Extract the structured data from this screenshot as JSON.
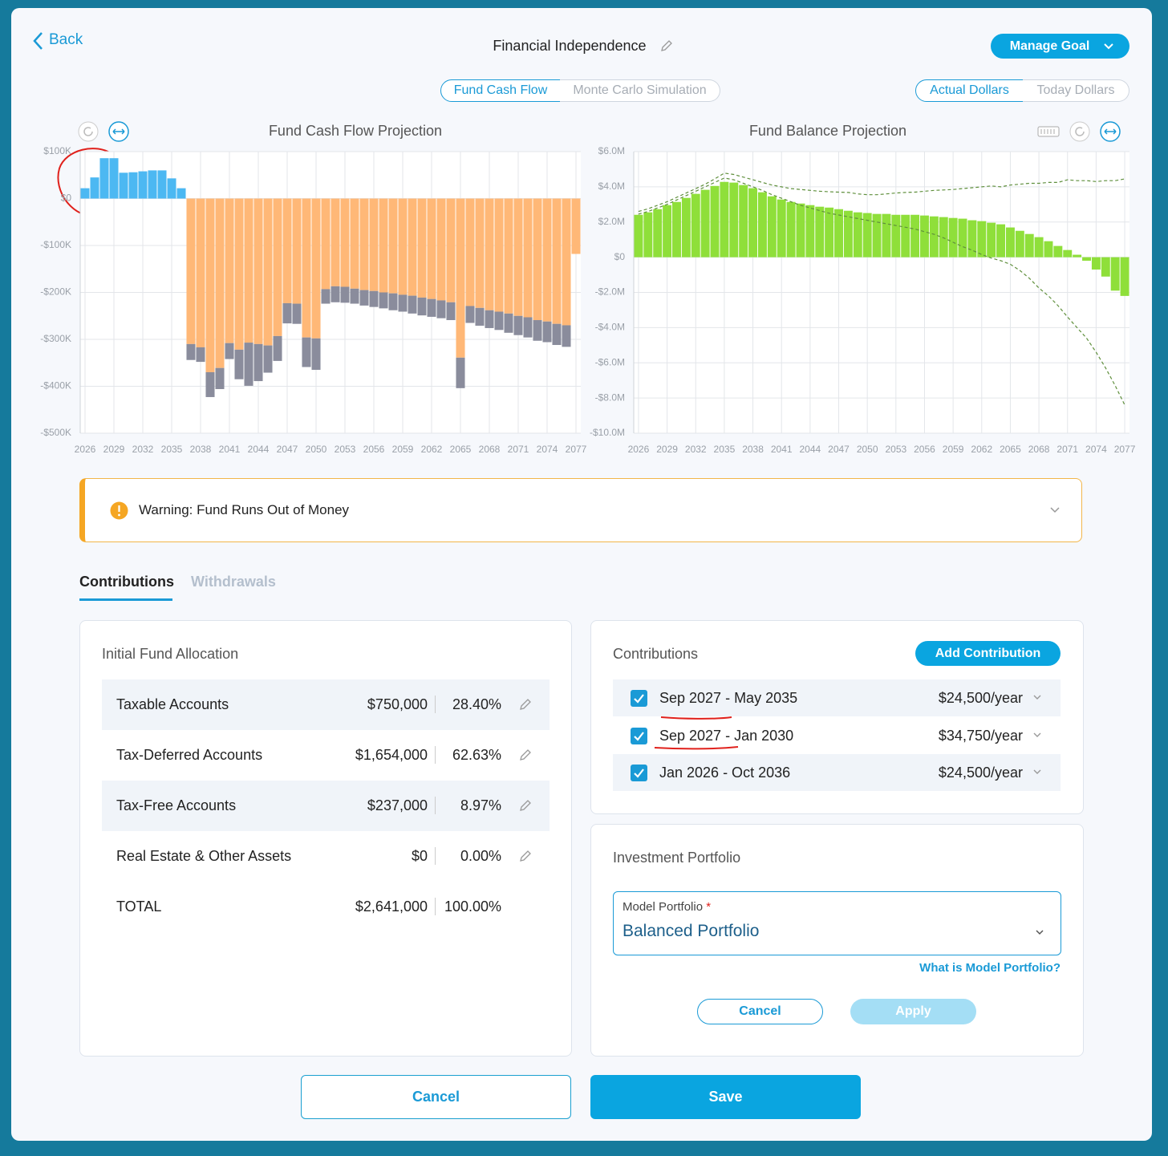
{
  "header": {
    "back": "Back",
    "title": "Financial Independence",
    "manage_goal": "Manage Goal"
  },
  "view_toggle": [
    "Fund Cash Flow",
    "Monte Carlo Simulation"
  ],
  "dollar_toggle": [
    "Actual Dollars",
    "Today Dollars"
  ],
  "chart_data": [
    {
      "type": "bar",
      "title": "Fund Cash Flow Projection",
      "x": [
        2026,
        2027,
        2028,
        2029,
        2030,
        2031,
        2032,
        2033,
        2034,
        2035,
        2036,
        2037,
        2038,
        2039,
        2040,
        2041,
        2042,
        2043,
        2044,
        2045,
        2046,
        2047,
        2048,
        2049,
        2050,
        2051,
        2052,
        2053,
        2054,
        2055,
        2056,
        2057,
        2058,
        2059,
        2060,
        2061,
        2062,
        2063,
        2064,
        2065,
        2066,
        2067,
        2068,
        2069,
        2070,
        2071,
        2072,
        2073,
        2074,
        2075,
        2076,
        2077
      ],
      "xlim": [
        2025.5,
        2077.5
      ],
      "xticks": [
        2026,
        2029,
        2032,
        2035,
        2038,
        2041,
        2044,
        2047,
        2050,
        2053,
        2056,
        2059,
        2062,
        2065,
        2068,
        2071,
        2074,
        2077
      ],
      "ylim": [
        -500000,
        100000
      ],
      "yticks": [
        {
          "value": -500000,
          "label": "-$500K"
        },
        {
          "value": -400000,
          "label": "-$400K"
        },
        {
          "value": -300000,
          "label": "-$300K"
        },
        {
          "value": -200000,
          "label": "-$200K"
        },
        {
          "value": -100000,
          "label": "-$100K"
        },
        {
          "value": 0,
          "label": "$0"
        },
        {
          "value": 100000,
          "label": "$100K"
        }
      ],
      "grid": true,
      "series": [
        {
          "color": "#4cb8f2",
          "values": [
            22000,
            45000,
            86000,
            86000,
            55000,
            56000,
            58000,
            60000,
            60000,
            43000,
            22000,
            null,
            null,
            null,
            null,
            null,
            null,
            null,
            null,
            null,
            null,
            null,
            null,
            null,
            null,
            null,
            null,
            null,
            null,
            null,
            null,
            null,
            null,
            null,
            null,
            null,
            null,
            null,
            null,
            null,
            null,
            null,
            null,
            null,
            null,
            null,
            null,
            null,
            null,
            null,
            null,
            null
          ]
        },
        {
          "color": "#ffb877",
          "values": [
            null,
            null,
            null,
            null,
            null,
            null,
            null,
            null,
            null,
            null,
            null,
            -310000,
            -317000,
            -370000,
            -361000,
            -308000,
            -322000,
            -307000,
            -310000,
            -313000,
            -293000,
            -223000,
            -224000,
            -296000,
            -298000,
            -193000,
            -187000,
            -188000,
            -192000,
            -195000,
            -197000,
            -200000,
            -202000,
            -205000,
            -207000,
            -211000,
            -214000,
            -217000,
            -221000,
            -339000,
            -229000,
            -233000,
            -238000,
            -241000,
            -245000,
            -250000,
            -253000,
            -259000,
            -262000,
            -267000,
            -270000,
            -118000
          ]
        },
        {
          "color": "#8a8c9c",
          "values": [
            null,
            null,
            null,
            null,
            null,
            null,
            null,
            null,
            null,
            null,
            null,
            -34000,
            -31000,
            -53000,
            -45000,
            -34000,
            -63000,
            -92000,
            -79000,
            -58000,
            -53000,
            -43000,
            -43000,
            -63000,
            -67000,
            -31000,
            -34000,
            -34000,
            -32000,
            -33000,
            -34000,
            -34000,
            -36000,
            -36000,
            -38000,
            -38000,
            -38000,
            -38000,
            -38000,
            -65000,
            -36000,
            -38000,
            -38000,
            -39000,
            -41000,
            -41000,
            -43000,
            -44000,
            -44000,
            -45000,
            -46000,
            null
          ]
        }
      ]
    },
    {
      "type": "bar",
      "title": "Fund Balance Projection",
      "x": [
        2026,
        2027,
        2028,
        2029,
        2030,
        2031,
        2032,
        2033,
        2034,
        2035,
        2036,
        2037,
        2038,
        2039,
        2040,
        2041,
        2042,
        2043,
        2044,
        2045,
        2046,
        2047,
        2048,
        2049,
        2050,
        2051,
        2052,
        2053,
        2054,
        2055,
        2056,
        2057,
        2058,
        2059,
        2060,
        2061,
        2062,
        2063,
        2064,
        2065,
        2066,
        2067,
        2068,
        2069,
        2070,
        2071,
        2072,
        2073,
        2074,
        2075,
        2076,
        2077
      ],
      "xlim": [
        2025.5,
        2077.5
      ],
      "xticks": [
        2026,
        2029,
        2032,
        2035,
        2038,
        2041,
        2044,
        2047,
        2050,
        2053,
        2056,
        2059,
        2062,
        2065,
        2068,
        2071,
        2074,
        2077
      ],
      "ylim": [
        -10000000,
        6000000
      ],
      "yticks": [
        {
          "value": -10000000,
          "label": "-$10.0M"
        },
        {
          "value": -8000000,
          "label": "-$8.0M"
        },
        {
          "value": -6000000,
          "label": "-$6.0M"
        },
        {
          "value": -4000000,
          "label": "-$4.0M"
        },
        {
          "value": -2000000,
          "label": "-$2.0M"
        },
        {
          "value": 0,
          "label": "$0"
        },
        {
          "value": 2000000,
          "label": "$2.0M"
        },
        {
          "value": 4000000,
          "label": "$4.0M"
        },
        {
          "value": 6000000,
          "label": "$6.0M"
        }
      ],
      "grid": true,
      "series": [
        {
          "color": "#8fdf3a",
          "values": [
            2410000,
            2550000,
            2730000,
            2960000,
            3140000,
            3370000,
            3600000,
            3830000,
            4050000,
            4280000,
            4240000,
            4100000,
            3920000,
            3690000,
            3460000,
            3280000,
            3140000,
            3050000,
            2960000,
            2870000,
            2820000,
            2730000,
            2640000,
            2550000,
            2510000,
            2460000,
            2460000,
            2410000,
            2410000,
            2410000,
            2370000,
            2320000,
            2280000,
            2230000,
            2190000,
            2100000,
            2050000,
            1960000,
            1870000,
            1690000,
            1500000,
            1320000,
            1140000,
            910000,
            640000,
            410000,
            140000,
            -200000,
            -700000,
            -1100000,
            -1900000,
            -2200000
          ]
        },
        {
          "type": "line",
          "style": "dashed",
          "color": "#5f8f3c",
          "values": [
            2600000,
            2750000,
            2950000,
            3150000,
            3400000,
            3650000,
            3900000,
            4150000,
            4450000,
            4780000,
            4700000,
            4550000,
            4400000,
            4250000,
            4100000,
            4000000,
            3900000,
            3850000,
            3800000,
            3750000,
            3720000,
            3700000,
            3680000,
            3600000,
            3550000,
            3550000,
            3600000,
            3650000,
            3680000,
            3700000,
            3750000,
            3800000,
            3820000,
            3850000,
            3900000,
            3950000,
            4000000,
            4050000,
            4000000,
            4100000,
            4150000,
            4200000,
            4200000,
            4250000,
            4250000,
            4400000,
            4350000,
            4350000,
            4300000,
            4350000,
            4350000,
            4450000
          ]
        },
        {
          "type": "line",
          "style": "dashed",
          "color": "#5f8f3c",
          "values": [
            2450000,
            2600000,
            2800000,
            3000000,
            3250000,
            3500000,
            3750000,
            4000000,
            4250000,
            4500000,
            4400000,
            4200000,
            4000000,
            3800000,
            3550000,
            3350000,
            3150000,
            2950000,
            2800000,
            2650000,
            2500000,
            2400000,
            2300000,
            2200000,
            2100000,
            2000000,
            1900000,
            1800000,
            1700000,
            1600000,
            1450000,
            1300000,
            1100000,
            850000,
            600000,
            400000,
            150000,
            -50000,
            -200000,
            -400000,
            -750000,
            -1200000,
            -1750000,
            -2200000,
            -2750000,
            -3400000,
            -4000000,
            -4600000,
            -5400000,
            -6300000,
            -7300000,
            -8400000
          ]
        }
      ]
    }
  ],
  "warning": "Warning: Fund Runs Out of Money",
  "tabs": [
    "Contributions",
    "Withdrawals"
  ],
  "allocation": {
    "title": "Initial Fund Allocation",
    "rows": [
      [
        "Taxable Accounts",
        "$750,000",
        "28.40%"
      ],
      [
        "Tax-Deferred Accounts",
        "$1,654,000",
        "62.63%"
      ],
      [
        "Tax-Free Accounts",
        "$237,000",
        "8.97%"
      ],
      [
        "Real Estate & Other Assets",
        "$0",
        "0.00%"
      ],
      [
        "TOTAL",
        "$2,641,000",
        "100.00%"
      ]
    ]
  },
  "contributions": {
    "title": "Contributions",
    "add": "Add Contribution",
    "items": [
      [
        "Sep 2027 - May 2035",
        "$24,500/year"
      ],
      [
        "Sep 2027 - Jan 2030",
        "$34,750/year"
      ],
      [
        "Jan 2026 - Oct 2036",
        "$24,500/year"
      ]
    ]
  },
  "portfolio": {
    "title": "Investment Portfolio",
    "field_label": "Model Portfolio",
    "required": "*",
    "value": "Balanced Portfolio",
    "help": "What is Model Portfolio?",
    "cancel": "Cancel",
    "apply": "Apply"
  },
  "footer": {
    "cancel": "Cancel",
    "save": "Save"
  }
}
